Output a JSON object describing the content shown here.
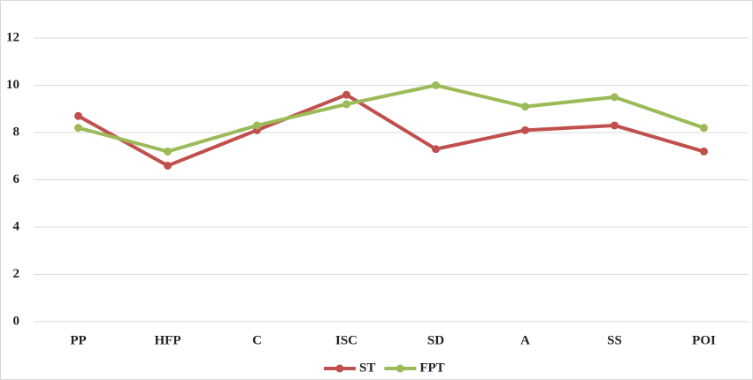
{
  "chart_data": {
    "type": "line",
    "categories": [
      "PP",
      "HFP",
      "C",
      "ISC",
      "SD",
      "A",
      "SS",
      "POI"
    ],
    "series": [
      {
        "name": "ST",
        "color": "#c0504d",
        "values": [
          8.7,
          6.6,
          8.1,
          9.6,
          7.3,
          8.1,
          8.3,
          7.2
        ]
      },
      {
        "name": "FPT",
        "color": "#9bbb59",
        "values": [
          8.2,
          7.2,
          8.3,
          9.2,
          10.0,
          9.1,
          9.5,
          8.2
        ]
      }
    ],
    "ylim": [
      0,
      12
    ],
    "yticks": [
      0,
      2,
      4,
      6,
      8,
      10,
      12
    ],
    "grid": true,
    "legend": "bottom"
  }
}
